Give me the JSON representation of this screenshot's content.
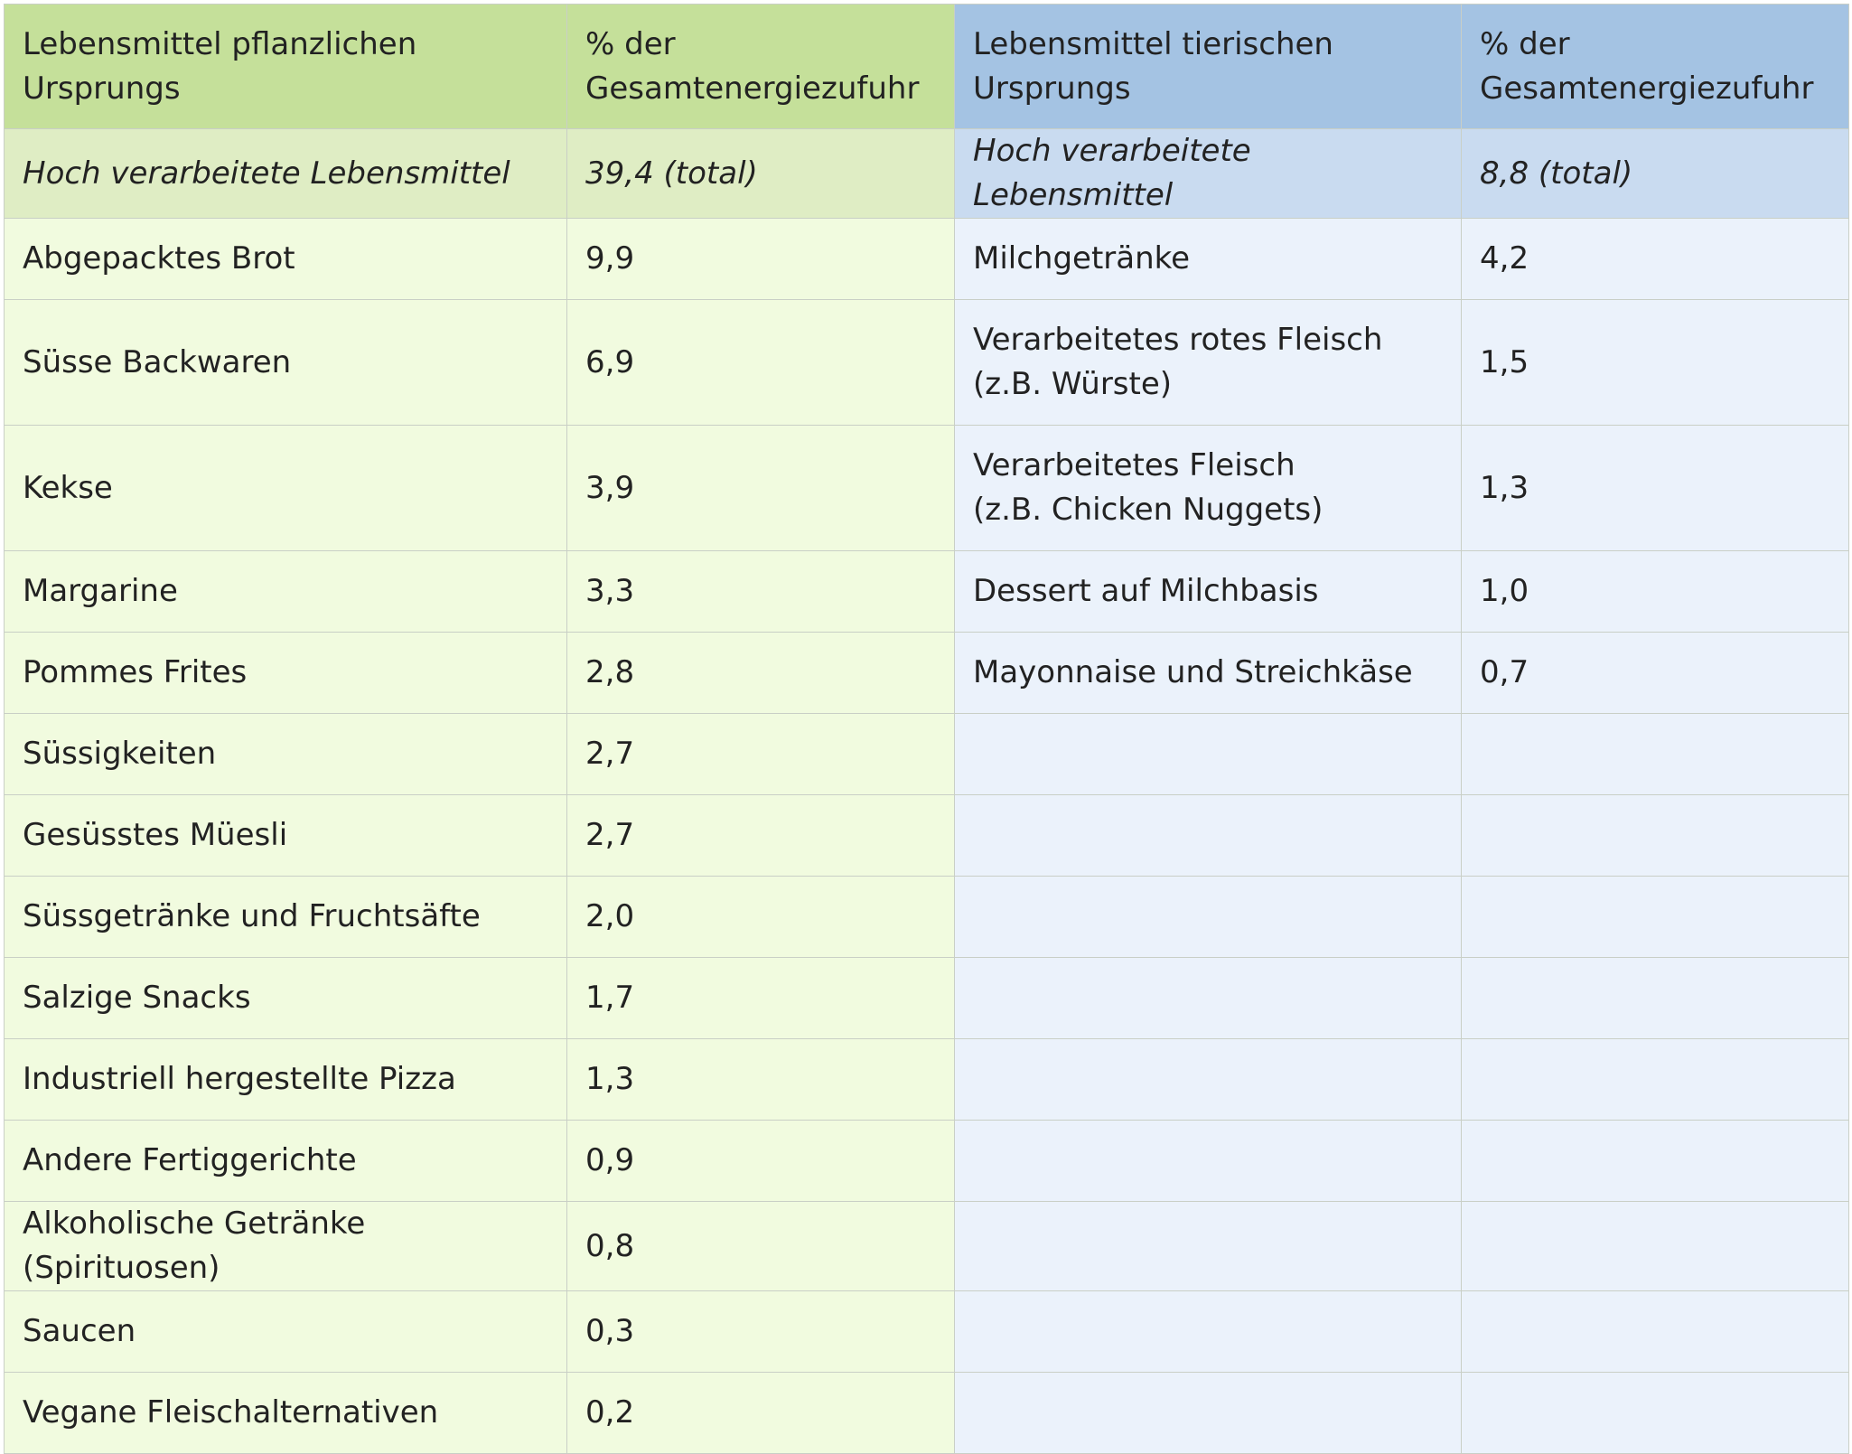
{
  "header": {
    "plant_label": "Lebensmittel pflanzlichen\nUrsprungs",
    "plant_pct_label": "% der\nGesamtenergiezufuhr",
    "animal_label": "Lebensmittel tierischen\nUrsprungs",
    "animal_pct_label": "% der\nGesamtenergiezufuhr"
  },
  "subheader": {
    "plant_label": "Hoch verarbeitete Lebensmittel",
    "plant_value": "39,4 (total)",
    "animal_label": "Hoch verarbeitete Lebensmittel",
    "animal_value": "8,8 (total)"
  },
  "rows": [
    {
      "plant": "Abgepacktes Brot",
      "plant_value": "9,9",
      "animal": "Milchgetränke",
      "animal_value": "4,2"
    },
    {
      "plant": "Süsse Backwaren",
      "plant_value": "6,9",
      "animal": "Verarbeitetes rotes Fleisch\n(z.B. Würste)",
      "animal_value": "1,5"
    },
    {
      "plant": "Kekse",
      "plant_value": "3,9",
      "animal": "Verarbeitetes Fleisch\n(z.B. Chicken Nuggets)",
      "animal_value": "1,3"
    },
    {
      "plant": "Margarine",
      "plant_value": "3,3",
      "animal": "Dessert auf Milchbasis",
      "animal_value": "1,0"
    },
    {
      "plant": "Pommes Frites",
      "plant_value": "2,8",
      "animal": "Mayonnaise und Streichkäse",
      "animal_value": "0,7"
    },
    {
      "plant": "Süssigkeiten",
      "plant_value": "2,7",
      "animal": "",
      "animal_value": ""
    },
    {
      "plant": "Gesüsstes Müesli",
      "plant_value": "2,7",
      "animal": "",
      "animal_value": ""
    },
    {
      "plant": "Süssgetränke und  Fruchtsäfte",
      "plant_value": "2,0",
      "animal": "",
      "animal_value": ""
    },
    {
      "plant": "Salzige Snacks",
      "plant_value": "1,7",
      "animal": "",
      "animal_value": ""
    },
    {
      "plant": "Industriell hergestellte Pizza",
      "plant_value": "1,3",
      "animal": "",
      "animal_value": ""
    },
    {
      "plant": "Andere Fertiggerichte",
      "plant_value": "0,9",
      "animal": "",
      "animal_value": ""
    },
    {
      "plant": "Alkoholische Getränke (Spirituosen)",
      "plant_value": "0,8",
      "animal": "",
      "animal_value": ""
    },
    {
      "plant": " Saucen",
      "plant_value": "0,3",
      "animal": "",
      "animal_value": ""
    },
    {
      "plant": "Vegane Fleischalternativen",
      "plant_value": "0,2",
      "animal": "",
      "animal_value": ""
    }
  ]
}
